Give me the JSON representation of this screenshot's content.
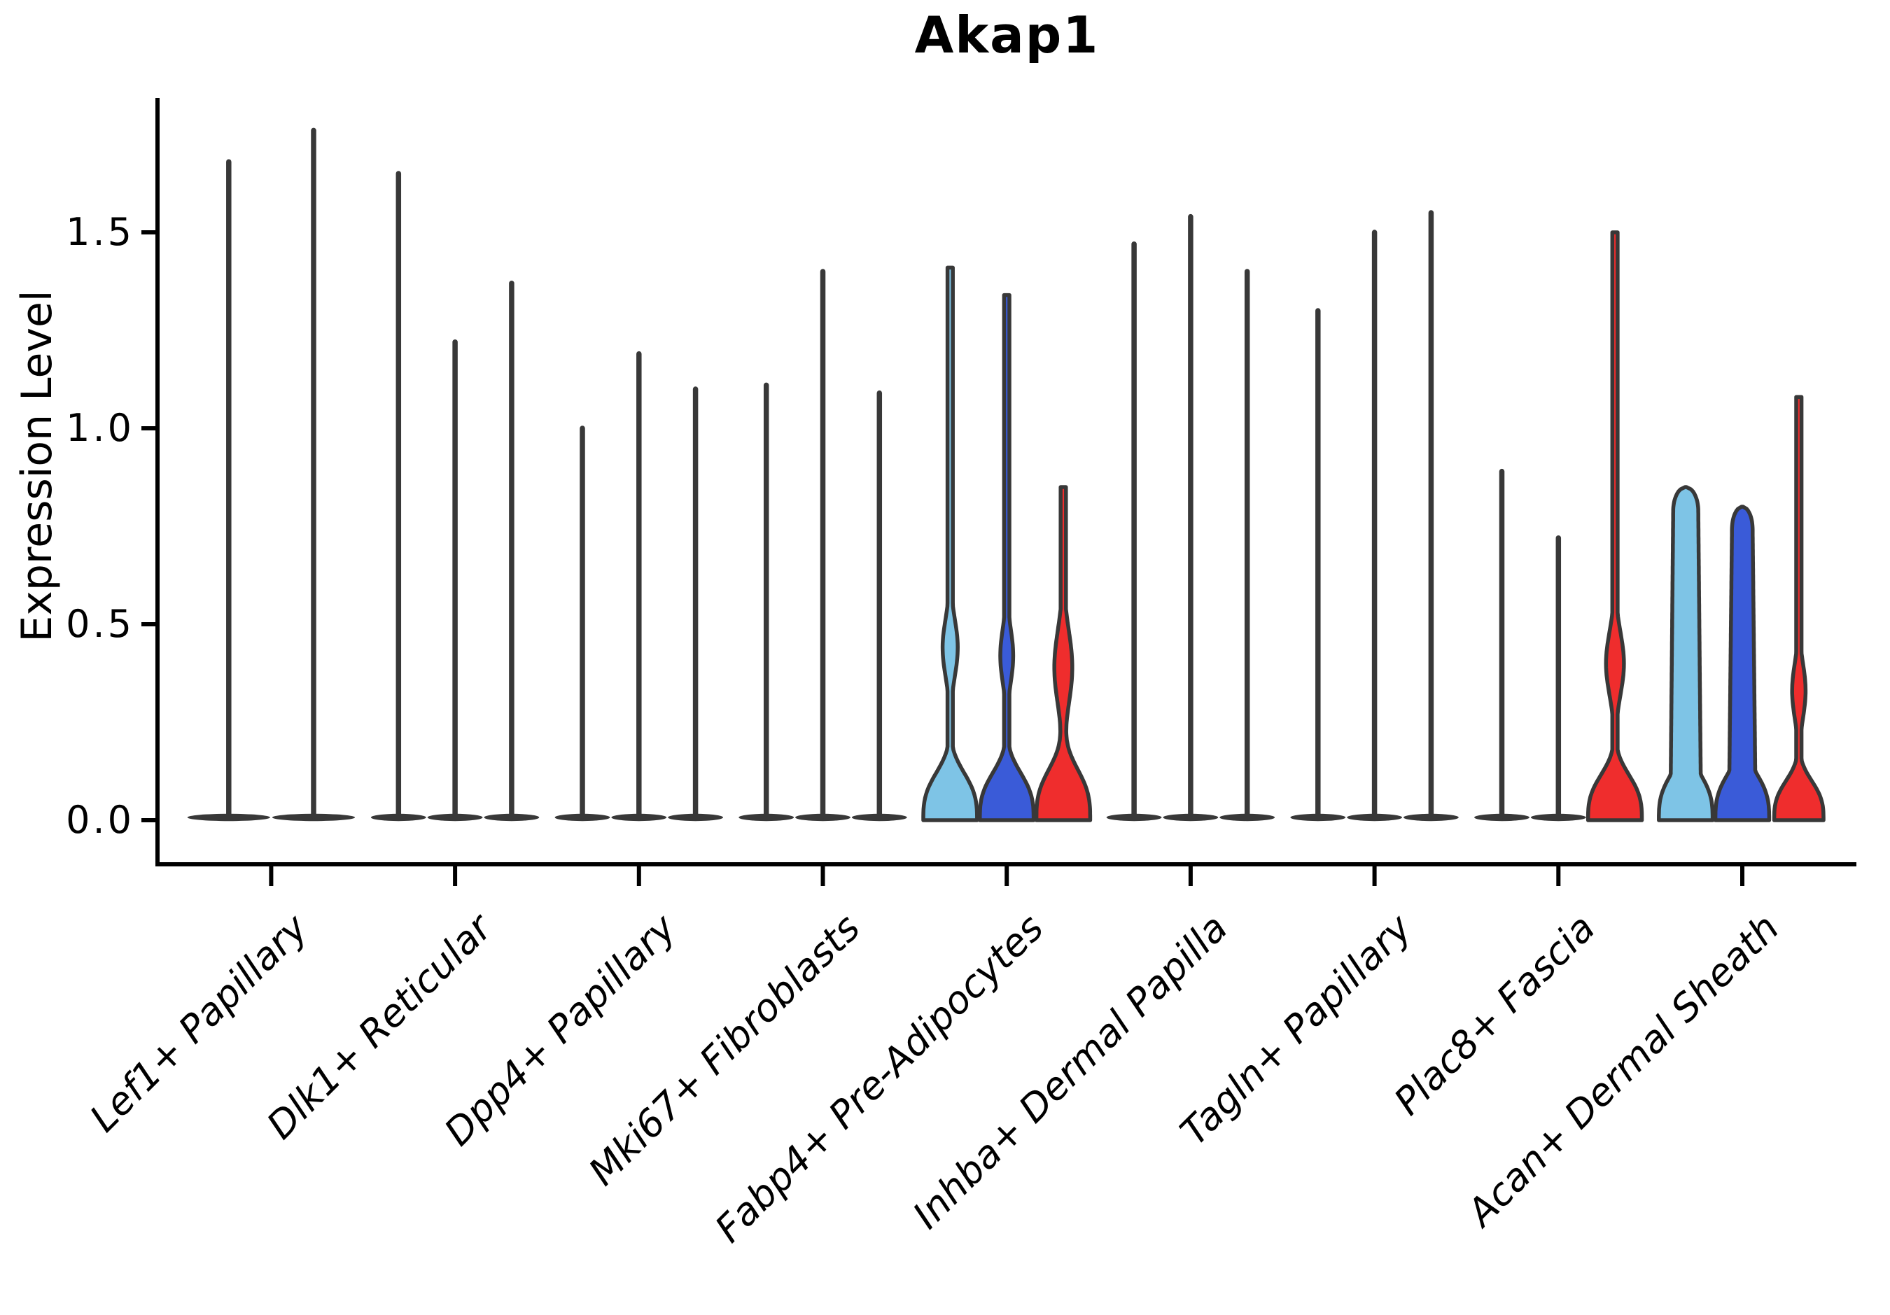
{
  "chart_data": {
    "type": "violin",
    "title": "Akap1",
    "ylabel": "Expression Level",
    "xlabel": "",
    "yticks": [
      0.0,
      0.5,
      1.0,
      1.5
    ],
    "ytick_labels": [
      "0.0",
      "0.5",
      "1.0",
      "1.5"
    ],
    "ylim": [
      -0.06,
      1.85
    ],
    "grid": false,
    "legend": "none",
    "palette": {
      "light_blue": "#7EC4E6",
      "royal_blue": "#3A5BD8",
      "red": "#EF2D2D",
      "thin_violin": "#383838",
      "axis": "#000000"
    },
    "groups": [
      {
        "label": "Lef1+ Papillary",
        "violins": [
          {
            "max": 1.68,
            "shape": "spike"
          },
          {
            "max": 1.76,
            "shape": "spike"
          }
        ]
      },
      {
        "label": "Dlk1+ Reticular",
        "violins": [
          {
            "max": 1.65,
            "shape": "spike"
          },
          {
            "max": 1.22,
            "shape": "spike"
          },
          {
            "max": 1.37,
            "shape": "spike"
          }
        ]
      },
      {
        "label": "Dpp4+ Papillary",
        "violins": [
          {
            "max": 1.0,
            "shape": "spike"
          },
          {
            "max": 1.19,
            "shape": "spike"
          },
          {
            "max": 1.1,
            "shape": "spike"
          }
        ]
      },
      {
        "label": "Mki67+ Fibroblasts",
        "violins": [
          {
            "max": 1.11,
            "shape": "spike"
          },
          {
            "max": 1.4,
            "shape": "spike"
          },
          {
            "max": 1.09,
            "shape": "spike"
          }
        ]
      },
      {
        "label": "Fabp4+ Pre-Adipocytes",
        "violins": [
          {
            "max": 1.41,
            "shape": "bulge",
            "color": "light_blue",
            "params": {
              "bell_top": 0.24,
              "lens_center": 0.44,
              "lens_sigma": 0.105,
              "lens_amp": 0.135
            }
          },
          {
            "max": 1.34,
            "shape": "bulge",
            "color": "royal_blue",
            "params": {
              "bell_top": 0.24,
              "lens_center": 0.42,
              "lens_sigma": 0.1,
              "lens_amp": 0.115
            }
          },
          {
            "max": 0.85,
            "shape": "bulge",
            "color": "red",
            "params": {
              "bell_top": 0.26,
              "lens_center": 0.39,
              "lens_sigma": 0.135,
              "lens_amp": 0.16
            }
          }
        ]
      },
      {
        "label": "Inhba+ Dermal Papilla",
        "violins": [
          {
            "max": 1.47,
            "shape": "spike"
          },
          {
            "max": 1.54,
            "shape": "spike"
          },
          {
            "max": 1.4,
            "shape": "spike"
          }
        ]
      },
      {
        "label": "Tagln+ Papillary",
        "violins": [
          {
            "max": 1.3,
            "shape": "spike"
          },
          {
            "max": 1.5,
            "shape": "spike"
          },
          {
            "max": 1.55,
            "shape": "spike"
          }
        ]
      },
      {
        "label": "Plac8+ Fascia",
        "violins": [
          {
            "max": 0.89,
            "shape": "spike"
          },
          {
            "max": 0.72,
            "shape": "spike"
          },
          {
            "max": 1.5,
            "shape": "bulge",
            "color": "red",
            "params": {
              "bell_top": 0.23,
              "lens_center": 0.4,
              "lens_sigma": 0.115,
              "lens_amp": 0.16
            }
          }
        ]
      },
      {
        "label": "Acan+ Dermal Sheath",
        "violins": [
          {
            "max": 0.85,
            "shape": "column",
            "color": "light_blue",
            "params": {
              "bell_top": 0.24,
              "top_w": 0.44,
              "bottom_w": 0.55
            }
          },
          {
            "max": 0.8,
            "shape": "column",
            "color": "royal_blue",
            "params": {
              "bell_top": 0.24,
              "top_w": 0.36,
              "bottom_w": 0.48
            }
          },
          {
            "max": 1.08,
            "shape": "bulge",
            "color": "red",
            "params": {
              "bell_top": 0.2,
              "bell_amp": 0.44,
              "lens_center": 0.33,
              "lens_sigma": 0.1,
              "lens_amp": 0.12
            }
          }
        ]
      }
    ]
  }
}
